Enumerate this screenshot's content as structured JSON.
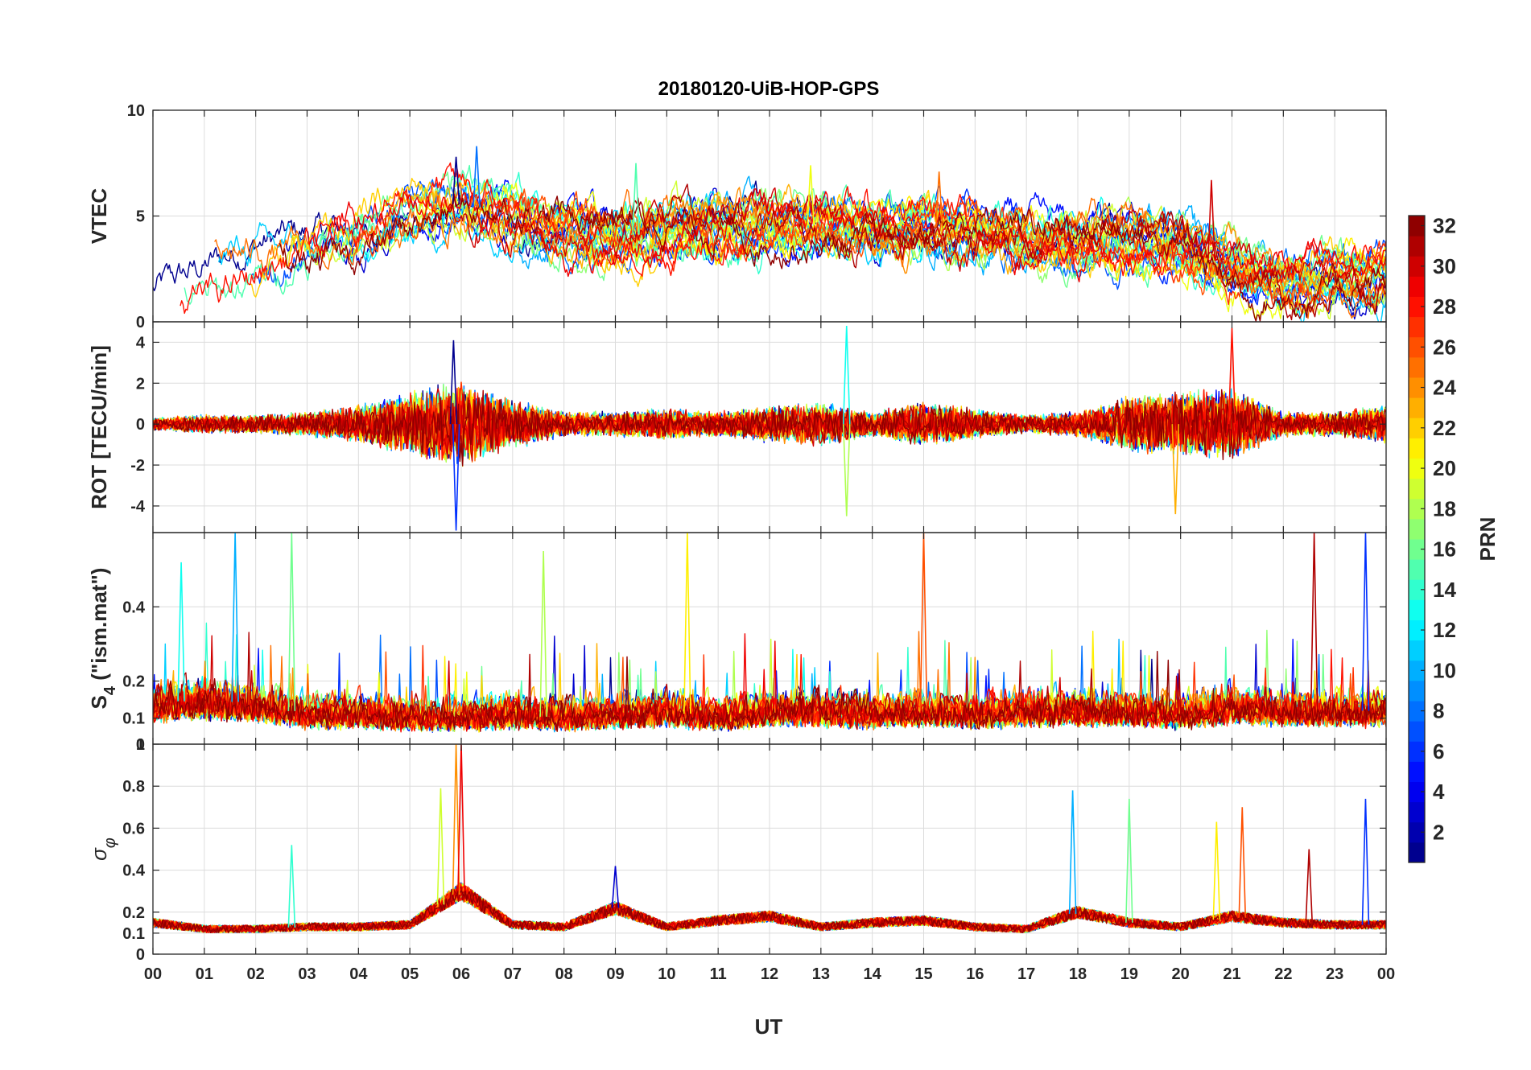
{
  "chart_data": {
    "type": "line",
    "title": "20180120-UiB-HOP-GPS",
    "xlabel": "UT",
    "x_tick_labels": [
      "00",
      "01",
      "02",
      "03",
      "04",
      "05",
      "06",
      "07",
      "08",
      "09",
      "10",
      "11",
      "12",
      "13",
      "14",
      "15",
      "16",
      "17",
      "18",
      "19",
      "20",
      "21",
      "22",
      "23",
      "00"
    ],
    "x_range_hours": [
      0,
      24
    ],
    "grid": true,
    "colorbar": {
      "label": "PRN",
      "range": [
        1,
        32
      ],
      "ticks": [
        "2",
        "4",
        "6",
        "8",
        "10",
        "12",
        "14",
        "16",
        "18",
        "20",
        "22",
        "24",
        "26",
        "28",
        "30",
        "32"
      ],
      "colormap": "jet",
      "placement": "right"
    },
    "series_prns": [
      1,
      3,
      5,
      6,
      7,
      8,
      10,
      11,
      13,
      14,
      15,
      16,
      17,
      18,
      19,
      20,
      21,
      22,
      23,
      24,
      25,
      26,
      27,
      28,
      29,
      30,
      31,
      32
    ],
    "panels": [
      {
        "id": "vtec",
        "ylabel": "VTEC",
        "ylim": [
          0,
          10
        ],
        "y_tick_labels": [
          "0",
          "5",
          "10"
        ],
        "y_ticks": [
          0,
          5,
          10
        ],
        "profile_hours": [
          0,
          1,
          2,
          3,
          4,
          5,
          6,
          7,
          8,
          9,
          10,
          11,
          12,
          13,
          14,
          15,
          16,
          17,
          18,
          19,
          20,
          21,
          22,
          23,
          24
        ],
        "typical_values": [
          1.5,
          2.0,
          2.8,
          3.4,
          4.0,
          5.2,
          5.6,
          5.0,
          4.2,
          4.0,
          4.3,
          4.4,
          4.5,
          4.6,
          4.4,
          4.5,
          4.3,
          3.8,
          3.7,
          3.9,
          3.6,
          2.6,
          1.8,
          2.2,
          2.2
        ],
        "peak_values": [
          {
            "x": 5.9,
            "y": 7.8
          },
          {
            "x": 6.3,
            "y": 8.3
          },
          {
            "x": 9.4,
            "y": 7.5
          },
          {
            "x": 12.8,
            "y": 7.4
          },
          {
            "x": 15.3,
            "y": 7.1
          },
          {
            "x": 20.6,
            "y": 6.7
          }
        ]
      },
      {
        "id": "rot",
        "ylabel": "ROT [TECU/min]",
        "ylim": [
          -5.3,
          5.0
        ],
        "y_tick_labels": [
          "-4",
          "-2",
          "0",
          "2",
          "4"
        ],
        "y_ticks": [
          -4,
          -2,
          0,
          2,
          4
        ],
        "profile_hours": [
          0,
          1,
          2,
          3,
          4,
          5,
          6,
          7,
          8,
          9,
          10,
          11,
          12,
          13,
          14,
          15,
          16,
          17,
          18,
          19,
          20,
          21,
          22,
          23,
          24
        ],
        "typical_amplitude": [
          0.2,
          0.3,
          0.3,
          0.4,
          0.6,
          1.0,
          1.4,
          0.8,
          0.4,
          0.4,
          0.5,
          0.4,
          0.6,
          0.7,
          0.4,
          0.7,
          0.5,
          0.3,
          0.4,
          0.9,
          1.0,
          1.2,
          0.4,
          0.4,
          0.6
        ],
        "peak_values": [
          {
            "x": 5.9,
            "y": -5.2
          },
          {
            "x": 13.5,
            "y": 4.8
          },
          {
            "x": 13.5,
            "y": -4.5
          },
          {
            "x": 19.9,
            "y": -4.4
          },
          {
            "x": 21.0,
            "y": 4.7
          },
          {
            "x": 5.85,
            "y": 4.1
          }
        ]
      },
      {
        "id": "s4",
        "ylabel": "S",
        "ylabel_sub": "4",
        "ylabel_tail": " (\"ism.mat\")",
        "ylim": [
          0.03,
          0.6
        ],
        "y_tick_labels": [
          "0.1",
          "0.2",
          "0.4"
        ],
        "y_ticks": [
          0.1,
          0.2,
          0.4
        ],
        "y_bottom_label": "0",
        "profile_hours": [
          0,
          1,
          2,
          3,
          4,
          5,
          6,
          7,
          8,
          9,
          10,
          11,
          12,
          13,
          14,
          15,
          16,
          17,
          18,
          19,
          20,
          21,
          22,
          23,
          24
        ],
        "typical_values": [
          0.14,
          0.15,
          0.14,
          0.11,
          0.11,
          0.1,
          0.1,
          0.11,
          0.1,
          0.11,
          0.12,
          0.1,
          0.12,
          0.12,
          0.11,
          0.12,
          0.11,
          0.12,
          0.12,
          0.12,
          0.11,
          0.13,
          0.12,
          0.12,
          0.12
        ],
        "peak_values": [
          {
            "x": 1.6,
            "y": 0.6
          },
          {
            "x": 2.7,
            "y": 0.6
          },
          {
            "x": 10.4,
            "y": 0.6
          },
          {
            "x": 15.0,
            "y": 0.6
          },
          {
            "x": 22.6,
            "y": 0.6
          },
          {
            "x": 23.6,
            "y": 0.6
          },
          {
            "x": 0.55,
            "y": 0.52
          },
          {
            "x": 7.6,
            "y": 0.55
          }
        ]
      },
      {
        "id": "sigma_phi",
        "ylabel": "σ",
        "ylabel_sub": "φ",
        "ylim": [
          0,
          1.0
        ],
        "y_tick_labels": [
          "0",
          "0.1",
          "0.2",
          "0.4",
          "0.6",
          "0.8",
          "1"
        ],
        "y_ticks": [
          0,
          0.1,
          0.2,
          0.4,
          0.6,
          0.8,
          1.0
        ],
        "profile_hours": [
          0,
          1,
          2,
          3,
          4,
          5,
          6,
          7,
          8,
          9,
          10,
          11,
          12,
          13,
          14,
          15,
          16,
          17,
          18,
          19,
          20,
          21,
          22,
          23,
          24
        ],
        "typical_values": [
          0.15,
          0.12,
          0.12,
          0.13,
          0.13,
          0.14,
          0.3,
          0.14,
          0.13,
          0.22,
          0.13,
          0.16,
          0.18,
          0.13,
          0.15,
          0.16,
          0.13,
          0.12,
          0.2,
          0.15,
          0.13,
          0.18,
          0.15,
          0.14,
          0.14
        ],
        "peak_values": [
          {
            "x": 2.7,
            "y": 0.52
          },
          {
            "x": 5.6,
            "y": 0.79
          },
          {
            "x": 5.9,
            "y": 1.0
          },
          {
            "x": 6.0,
            "y": 1.0
          },
          {
            "x": 9.0,
            "y": 0.42
          },
          {
            "x": 17.9,
            "y": 0.78
          },
          {
            "x": 19.0,
            "y": 0.74
          },
          {
            "x": 20.7,
            "y": 0.63
          },
          {
            "x": 21.2,
            "y": 0.7
          },
          {
            "x": 22.5,
            "y": 0.5
          },
          {
            "x": 23.6,
            "y": 0.74
          }
        ]
      }
    ]
  }
}
